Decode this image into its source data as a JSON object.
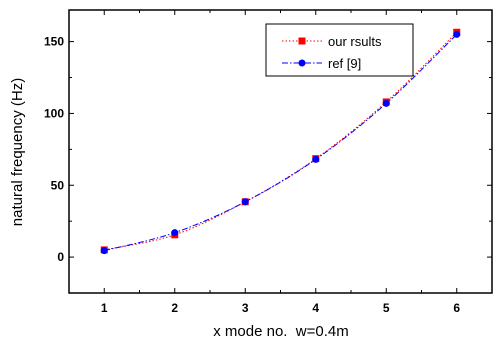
{
  "chart_data": {
    "type": "line",
    "xlabel": "x mode no.  w=0.4m",
    "ylabel": "natural frequency (Hz)",
    "xlim": [
      0.5,
      6.5
    ],
    "ylim": [
      -25,
      172
    ],
    "xticks": [
      "1",
      "2",
      "3",
      "4",
      "5",
      "6"
    ],
    "yticks": [
      "0",
      "50",
      "100",
      "150"
    ],
    "legend_position": "top-right",
    "series": [
      {
        "name": "our rsults",
        "color": "#ff0000",
        "marker": "square",
        "line_style": "dotted",
        "x": [
          1,
          2,
          3,
          4,
          5,
          6
        ],
        "values": [
          5,
          15.5,
          38.5,
          68.5,
          108,
          156.5
        ]
      },
      {
        "name": "ref [9]",
        "color": "#0000ff",
        "marker": "circle",
        "line_style": "dash-dot",
        "x": [
          1,
          2,
          3,
          4,
          5,
          6
        ],
        "values": [
          4.5,
          17,
          38.5,
          68,
          107,
          155
        ]
      }
    ]
  }
}
